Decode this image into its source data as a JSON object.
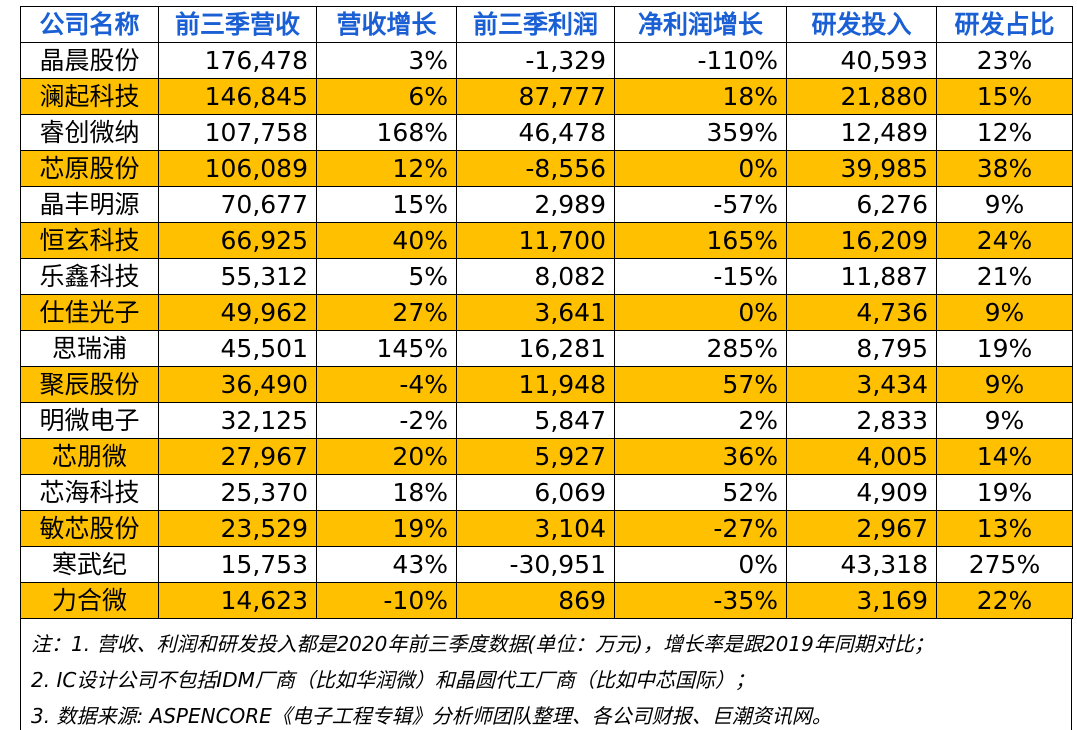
{
  "headers": [
    "公司名称",
    "前三季营收",
    "营收增长",
    "前三季利润",
    "净利润增长",
    "研发投入",
    "研发占比"
  ],
  "rows": [
    {
      "name": "晶晨股份",
      "revenue": "176,478",
      "revenue_growth": "3%",
      "profit": "-1,329",
      "profit_growth": "-110%",
      "rd": "40,593",
      "rd_ratio": "23%"
    },
    {
      "name": "澜起科技",
      "revenue": "146,845",
      "revenue_growth": "6%",
      "profit": "87,777",
      "profit_growth": "18%",
      "rd": "21,880",
      "rd_ratio": "15%"
    },
    {
      "name": "睿创微纳",
      "revenue": "107,758",
      "revenue_growth": "168%",
      "profit": "46,478",
      "profit_growth": "359%",
      "rd": "12,489",
      "rd_ratio": "12%"
    },
    {
      "name": "芯原股份",
      "revenue": "106,089",
      "revenue_growth": "12%",
      "profit": "-8,556",
      "profit_growth": "0%",
      "rd": "39,985",
      "rd_ratio": "38%"
    },
    {
      "name": "晶丰明源",
      "revenue": "70,677",
      "revenue_growth": "15%",
      "profit": "2,989",
      "profit_growth": "-57%",
      "rd": "6,276",
      "rd_ratio": "9%"
    },
    {
      "name": "恒玄科技",
      "revenue": "66,925",
      "revenue_growth": "40%",
      "profit": "11,700",
      "profit_growth": "165%",
      "rd": "16,209",
      "rd_ratio": "24%"
    },
    {
      "name": "乐鑫科技",
      "revenue": "55,312",
      "revenue_growth": "5%",
      "profit": "8,082",
      "profit_growth": "-15%",
      "rd": "11,887",
      "rd_ratio": "21%"
    },
    {
      "name": "仕佳光子",
      "revenue": "49,962",
      "revenue_growth": "27%",
      "profit": "3,641",
      "profit_growth": "0%",
      "rd": "4,736",
      "rd_ratio": "9%"
    },
    {
      "name": "思瑞浦",
      "revenue": "45,501",
      "revenue_growth": "145%",
      "profit": "16,281",
      "profit_growth": "285%",
      "rd": "8,795",
      "rd_ratio": "19%"
    },
    {
      "name": "聚辰股份",
      "revenue": "36,490",
      "revenue_growth": "-4%",
      "profit": "11,948",
      "profit_growth": "57%",
      "rd": "3,434",
      "rd_ratio": "9%"
    },
    {
      "name": "明微电子",
      "revenue": "32,125",
      "revenue_growth": "-2%",
      "profit": "5,847",
      "profit_growth": "2%",
      "rd": "2,833",
      "rd_ratio": "9%"
    },
    {
      "name": "芯朋微",
      "revenue": "27,967",
      "revenue_growth": "20%",
      "profit": "5,927",
      "profit_growth": "36%",
      "rd": "4,005",
      "rd_ratio": "14%"
    },
    {
      "name": "芯海科技",
      "revenue": "25,370",
      "revenue_growth": "18%",
      "profit": "6,069",
      "profit_growth": "52%",
      "rd": "4,909",
      "rd_ratio": "19%"
    },
    {
      "name": "敏芯股份",
      "revenue": "23,529",
      "revenue_growth": "19%",
      "profit": "3,104",
      "profit_growth": "-27%",
      "rd": "2,967",
      "rd_ratio": "13%"
    },
    {
      "name": "寒武纪",
      "revenue": "15,753",
      "revenue_growth": "43%",
      "profit": "-30,951",
      "profit_growth": "0%",
      "rd": "43,318",
      "rd_ratio": "275%"
    },
    {
      "name": "力合微",
      "revenue": "14,623",
      "revenue_growth": "-10%",
      "profit": "869",
      "profit_growth": "-35%",
      "rd": "3,169",
      "rd_ratio": "22%"
    }
  ],
  "notes": [
    "注：1. 营收、利润和研发投入都是2020年前三季度数据(单位：万元)，增长率是跟2019年同期对比；",
    "2. IC设计公司不包括IDM厂商（比如华润微）和晶圆代工厂商（比如中芯国际）；",
    "3. 数据来源: ASPENCORE《电子工程专辑》分析师团队整理、各公司财报、巨潮资讯网。"
  ],
  "colors": {
    "header_text": "#1a5fd4",
    "stripe": "#ffc000",
    "grid": "#000000"
  }
}
